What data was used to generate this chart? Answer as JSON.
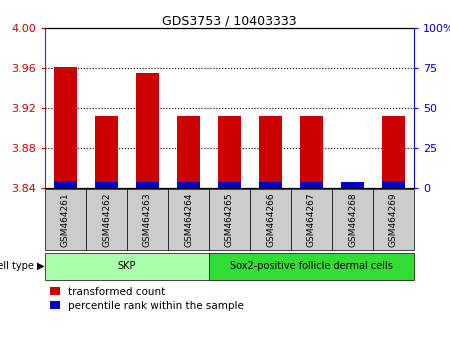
{
  "title": "GDS3753 / 10403333",
  "samples": [
    "GSM464261",
    "GSM464262",
    "GSM464263",
    "GSM464264",
    "GSM464265",
    "GSM464266",
    "GSM464267",
    "GSM464268",
    "GSM464269"
  ],
  "red_values": [
    3.961,
    3.912,
    3.955,
    3.912,
    3.912,
    3.912,
    3.912,
    3.846,
    3.912
  ],
  "blue_values": [
    3.847,
    3.846,
    3.846,
    3.846,
    3.846,
    3.846,
    3.846,
    3.846,
    3.847
  ],
  "baseline": 3.84,
  "ylim_left": [
    3.84,
    4.0
  ],
  "yticks_left": [
    3.84,
    3.88,
    3.92,
    3.96,
    4.0
  ],
  "ylim_right": [
    0,
    100
  ],
  "yticks_right": [
    0,
    25,
    50,
    75,
    100
  ],
  "yticklabels_right": [
    "0",
    "25",
    "50",
    "75",
    "100%"
  ],
  "red_color": "#cc0000",
  "blue_color": "#0000cc",
  "bar_width": 0.55,
  "grid_color": "#000000",
  "cell_types": [
    {
      "label": "SKP",
      "count": 4,
      "color": "#aaffaa"
    },
    {
      "label": "Sox2-positive follicle dermal cells",
      "count": 5,
      "color": "#33dd33"
    }
  ],
  "cell_type_label": "cell type",
  "legend_red": "transformed count",
  "legend_blue": "percentile rank within the sample",
  "tick_label_color_left": "#cc0000",
  "tick_label_color_right": "#0000cc",
  "sample_box_color": "#cccccc",
  "bg_color": "#ffffff"
}
